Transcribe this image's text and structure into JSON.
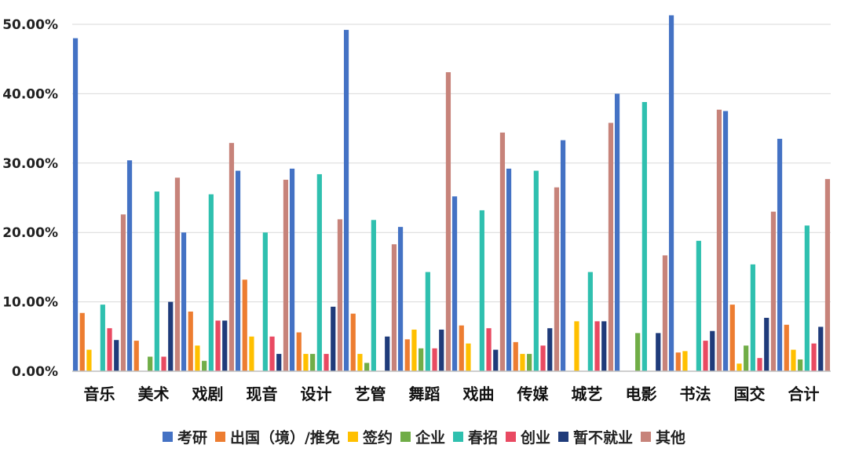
{
  "chart_data": {
    "type": "bar",
    "categories": [
      "音乐",
      "美术",
      "戏剧",
      "现音",
      "设计",
      "艺管",
      "舞蹈",
      "戏曲",
      "传媒",
      "城艺",
      "电影",
      "书法",
      "国交",
      "合计"
    ],
    "ylim": [
      0,
      50
    ],
    "yticks": [
      0,
      10,
      20,
      30,
      40,
      50
    ],
    "ytick_labels": [
      "0.00%",
      "10.00%",
      "20.00%",
      "30.00%",
      "40.00%",
      "50.00%"
    ],
    "grid": true,
    "legend_position": "bottom",
    "series": [
      {
        "name": "考研",
        "color": "#4472C4",
        "values": [
          48.0,
          30.4,
          20.0,
          28.9,
          29.2,
          49.2,
          20.8,
          25.2,
          29.2,
          33.3,
          40.0,
          51.3,
          37.5,
          33.5
        ]
      },
      {
        "name": "出国（境）/推免",
        "color": "#ED7D31",
        "values": [
          8.4,
          4.4,
          8.6,
          13.2,
          5.6,
          8.3,
          4.6,
          6.6,
          4.2,
          0,
          0,
          2.7,
          9.6,
          6.7
        ]
      },
      {
        "name": "签约",
        "color": "#FFC000",
        "values": [
          3.1,
          0,
          3.7,
          5.0,
          2.5,
          2.5,
          6.0,
          4.0,
          2.5,
          7.2,
          0,
          2.9,
          1.1,
          3.1
        ]
      },
      {
        "name": "企业",
        "color": "#70AD47",
        "values": [
          0,
          2.1,
          1.5,
          0,
          2.5,
          1.2,
          3.3,
          0,
          2.5,
          0,
          5.5,
          0,
          3.7,
          1.7
        ]
      },
      {
        "name": "春招",
        "color": "#2FC0AF",
        "values": [
          9.6,
          25.9,
          25.5,
          20.0,
          28.4,
          21.8,
          14.3,
          23.2,
          28.9,
          14.3,
          38.8,
          18.8,
          15.4,
          21.0
        ]
      },
      {
        "name": "创业",
        "color": "#E94A62",
        "values": [
          6.2,
          2.1,
          7.3,
          5.0,
          2.5,
          0,
          3.3,
          6.2,
          3.7,
          7.2,
          0,
          4.4,
          1.9,
          4.0
        ]
      },
      {
        "name": "暂不就业",
        "color": "#1F3B7A",
        "values": [
          4.5,
          10.0,
          7.3,
          2.5,
          9.3,
          5.0,
          6.0,
          3.1,
          6.2,
          7.2,
          5.5,
          5.8,
          7.7,
          6.4
        ]
      },
      {
        "name": "其他",
        "color": "#C7837A",
        "values": [
          22.6,
          27.9,
          32.9,
          27.6,
          21.9,
          18.3,
          43.1,
          34.4,
          26.5,
          35.8,
          16.7,
          37.7,
          23.0,
          27.7
        ]
      }
    ]
  }
}
